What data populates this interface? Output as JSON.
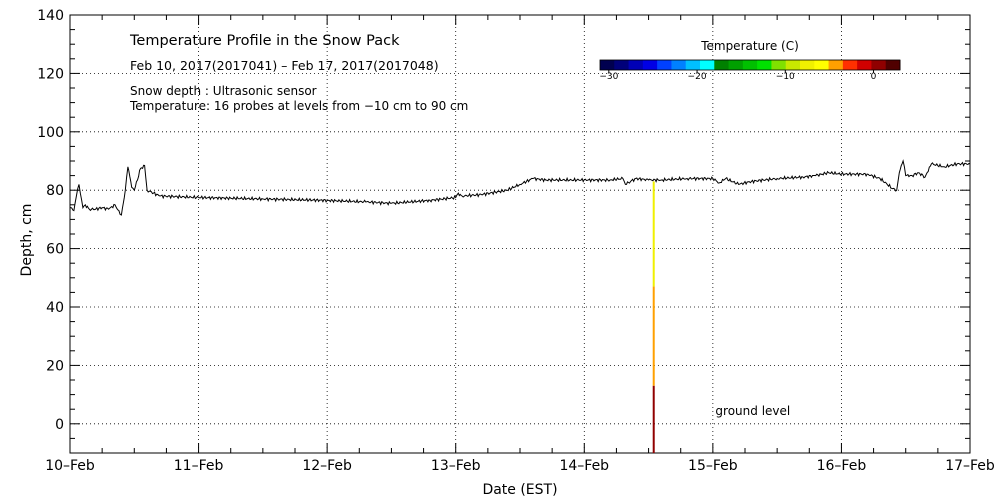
{
  "chart_data": {
    "type": "line",
    "title": "Temperature Profile in the Snow Pack",
    "subtitle": "Feb 10, 2017(2017041) – Feb 17, 2017(2017048)",
    "notes": [
      "Snow depth : Ultrasonic sensor",
      "Temperature: 16 probes at levels from −10 cm to 90 cm"
    ],
    "xlabel": "Date (EST)",
    "ylabel": "Depth, cm",
    "xlim": [
      0,
      7
    ],
    "ylim": [
      -10,
      140
    ],
    "grid": true,
    "x_ticks": [
      {
        "value": 0,
        "label": "10–Feb"
      },
      {
        "value": 1,
        "label": "11–Feb"
      },
      {
        "value": 2,
        "label": "12–Feb"
      },
      {
        "value": 3,
        "label": "13–Feb"
      },
      {
        "value": 4,
        "label": "14–Feb"
      },
      {
        "value": 5,
        "label": "15–Feb"
      },
      {
        "value": 6,
        "label": "16–Feb"
      },
      {
        "value": 7,
        "label": "17–Feb"
      }
    ],
    "y_ticks": [
      0,
      20,
      40,
      60,
      80,
      100,
      120,
      140
    ],
    "series": [
      {
        "name": "Snow depth",
        "x": [
          0,
          0.03,
          0.05,
          0.07,
          0.08,
          0.1,
          0.12,
          0.15,
          0.2,
          0.25,
          0.3,
          0.35,
          0.38,
          0.4,
          0.43,
          0.45,
          0.48,
          0.5,
          0.55,
          0.58,
          0.6,
          0.65,
          0.7,
          1.0,
          1.5,
          2.0,
          2.3,
          2.5,
          2.8,
          3.0,
          3.02,
          3.05,
          3.2,
          3.4,
          3.5,
          3.6,
          3.7,
          3.9,
          4.2,
          4.3,
          4.32,
          4.4,
          4.5,
          4.6,
          4.8,
          5.0,
          5.05,
          5.1,
          5.2,
          5.3,
          5.5,
          5.7,
          5.8,
          5.9,
          6.0,
          6.2,
          6.3,
          6.4,
          6.43,
          6.45,
          6.48,
          6.5,
          6.55,
          6.6,
          6.65,
          6.7,
          6.8,
          6.9,
          7.0
        ],
        "values": [
          74,
          73,
          78,
          82,
          79,
          74,
          75,
          73.5,
          73.5,
          74,
          73.5,
          75,
          73,
          71.5,
          80,
          88,
          81,
          80,
          87.5,
          88.5,
          80,
          79,
          78,
          77.5,
          77,
          76.5,
          76,
          75.5,
          76.5,
          77.5,
          79,
          78,
          78.5,
          80,
          82,
          84,
          83.5,
          83.5,
          83.5,
          84,
          82,
          84,
          83.5,
          83.5,
          84,
          84,
          82.5,
          84,
          82,
          83,
          84,
          84.5,
          85,
          86,
          85.5,
          85.5,
          84,
          80.5,
          80,
          86,
          90,
          85,
          85,
          86,
          84.5,
          89,
          88,
          89,
          89
        ]
      }
    ],
    "probe": {
      "name": "Temperature probes",
      "x": 4.54,
      "segments": [
        {
          "from": 47,
          "to": 83,
          "temp": -8
        },
        {
          "from": 13,
          "to": 47,
          "temp": -4
        },
        {
          "from": -10,
          "to": 13,
          "temp": 0
        }
      ]
    },
    "annotation": {
      "text": "ground level",
      "x": 5.02,
      "y": 3
    },
    "colorbar": {
      "title": "Temperature (C)",
      "range": [
        -31,
        3
      ],
      "ticks": [
        {
          "value": -30,
          "label": "−30"
        },
        {
          "value": -20,
          "label": "−20"
        },
        {
          "value": -10,
          "label": "−10"
        },
        {
          "value": 0,
          "label": "0"
        }
      ],
      "colors": [
        "#00004f",
        "#00007a",
        "#0000b5",
        "#0000e5",
        "#0040ff",
        "#0080ff",
        "#00c0ff",
        "#00ffff",
        "#008000",
        "#00a000",
        "#00c000",
        "#00e000",
        "#80e000",
        "#c8e800",
        "#f0f000",
        "#ffff00",
        "#ffa000",
        "#ff3000",
        "#d00000",
        "#900000",
        "#500000"
      ]
    }
  }
}
